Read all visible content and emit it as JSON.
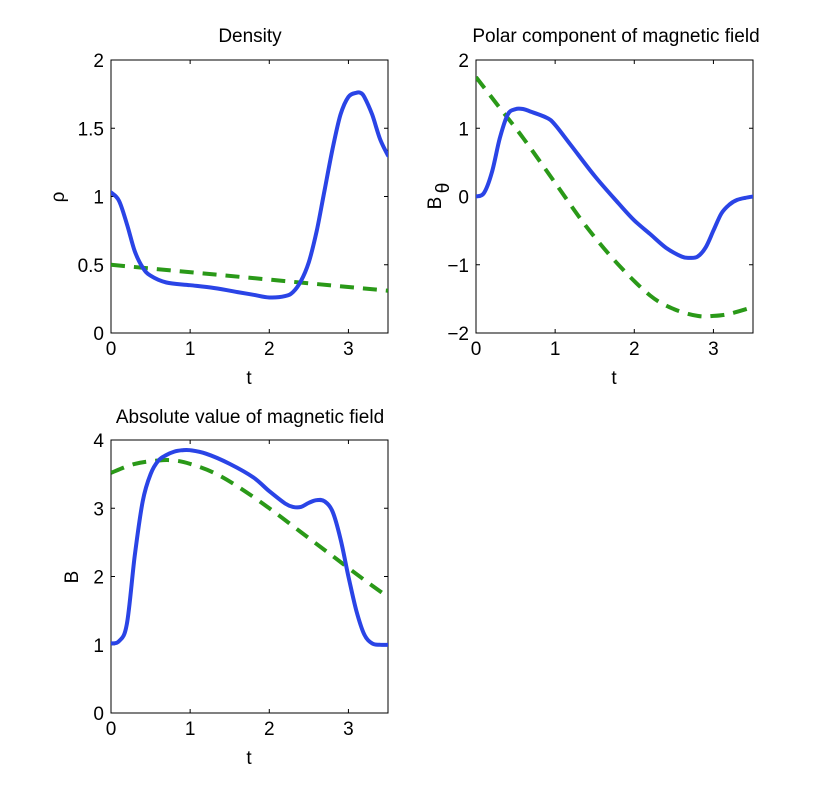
{
  "colors": {
    "solid": "#2a44e6",
    "dashed": "#2a9918"
  },
  "chart_data": [
    {
      "type": "line",
      "title": "Density",
      "xlabel": "t",
      "ylabel": "ρ",
      "xlim": [
        0,
        3.5
      ],
      "ylim": [
        0,
        2
      ],
      "xticks": [
        "0",
        "1",
        "2",
        "3"
      ],
      "yticks": [
        "0",
        "0.5",
        "1",
        "1.5",
        "2"
      ],
      "series": [
        {
          "name": "solid",
          "style": "solid",
          "x": [
            0,
            0.1,
            0.2,
            0.3,
            0.4,
            0.5,
            0.7,
            1.0,
            1.3,
            1.6,
            1.8,
            2.0,
            2.2,
            2.3,
            2.4,
            2.5,
            2.6,
            2.7,
            2.8,
            2.9,
            3.0,
            3.1,
            3.15,
            3.2,
            3.3,
            3.4,
            3.5
          ],
          "y": [
            1.03,
            0.97,
            0.8,
            0.6,
            0.48,
            0.42,
            0.37,
            0.35,
            0.33,
            0.3,
            0.28,
            0.26,
            0.27,
            0.3,
            0.38,
            0.52,
            0.75,
            1.05,
            1.35,
            1.6,
            1.73,
            1.76,
            1.76,
            1.73,
            1.6,
            1.42,
            1.3
          ]
        },
        {
          "name": "dashed",
          "style": "dashed",
          "x": [
            0,
            3.5
          ],
          "y": [
            0.5,
            0.31
          ]
        }
      ]
    },
    {
      "type": "line",
      "title": "Polar component of magnetic field",
      "xlabel": "t",
      "ylabel": "Bθ",
      "ylabel_main": "B",
      "ylabel_sub": "θ",
      "xlim": [
        0,
        3.5
      ],
      "ylim": [
        -2,
        2
      ],
      "xticks": [
        "0",
        "1",
        "2",
        "3"
      ],
      "yticks": [
        "−2",
        "−1",
        "0",
        "1",
        "2"
      ],
      "series": [
        {
          "name": "solid",
          "style": "solid",
          "x": [
            0,
            0.1,
            0.2,
            0.3,
            0.4,
            0.5,
            0.6,
            0.7,
            0.9,
            1.0,
            1.2,
            1.5,
            1.8,
            2.0,
            2.2,
            2.4,
            2.6,
            2.7,
            2.8,
            2.9,
            3.0,
            3.1,
            3.2,
            3.3,
            3.4,
            3.5
          ],
          "y": [
            0,
            0.05,
            0.35,
            0.85,
            1.2,
            1.28,
            1.28,
            1.24,
            1.15,
            1.05,
            0.75,
            0.3,
            -0.1,
            -0.35,
            -0.55,
            -0.75,
            -0.88,
            -0.9,
            -0.88,
            -0.75,
            -0.5,
            -0.25,
            -0.12,
            -0.05,
            -0.02,
            0
          ]
        },
        {
          "name": "dashed",
          "style": "dashed",
          "x": [
            0,
            0.3,
            0.6,
            1.0,
            1.4,
            1.8,
            2.2,
            2.5,
            2.8,
            3.0,
            3.2,
            3.5
          ],
          "y": [
            1.75,
            1.3,
            0.85,
            0.2,
            -0.45,
            -1.0,
            -1.45,
            -1.65,
            -1.75,
            -1.75,
            -1.72,
            -1.62
          ]
        }
      ]
    },
    {
      "type": "line",
      "title": "Absolute value of magnetic field",
      "xlabel": "t",
      "ylabel": "B",
      "xlim": [
        0,
        3.5
      ],
      "ylim": [
        0,
        4
      ],
      "xticks": [
        "0",
        "1",
        "2",
        "3"
      ],
      "yticks": [
        "0",
        "1",
        "2",
        "3",
        "4"
      ],
      "series": [
        {
          "name": "solid",
          "style": "solid",
          "x": [
            0,
            0.1,
            0.2,
            0.3,
            0.4,
            0.5,
            0.6,
            0.7,
            0.8,
            0.9,
            1.0,
            1.2,
            1.5,
            1.8,
            2.0,
            2.2,
            2.3,
            2.4,
            2.5,
            2.6,
            2.7,
            2.8,
            2.9,
            3.0,
            3.1,
            3.2,
            3.3,
            3.4,
            3.5
          ],
          "y": [
            1.02,
            1.05,
            1.3,
            2.3,
            3.1,
            3.5,
            3.7,
            3.78,
            3.83,
            3.85,
            3.85,
            3.8,
            3.65,
            3.45,
            3.25,
            3.07,
            3.02,
            3.02,
            3.08,
            3.12,
            3.1,
            2.95,
            2.55,
            2.0,
            1.5,
            1.15,
            1.02,
            1.0,
            1.0
          ]
        },
        {
          "name": "dashed",
          "style": "dashed",
          "x": [
            0,
            0.3,
            0.6,
            0.8,
            1.0,
            1.3,
            1.6,
            2.0,
            2.4,
            2.8,
            3.2,
            3.5
          ],
          "y": [
            3.52,
            3.65,
            3.7,
            3.7,
            3.65,
            3.52,
            3.32,
            3.0,
            2.65,
            2.3,
            1.95,
            1.7
          ]
        }
      ]
    }
  ]
}
